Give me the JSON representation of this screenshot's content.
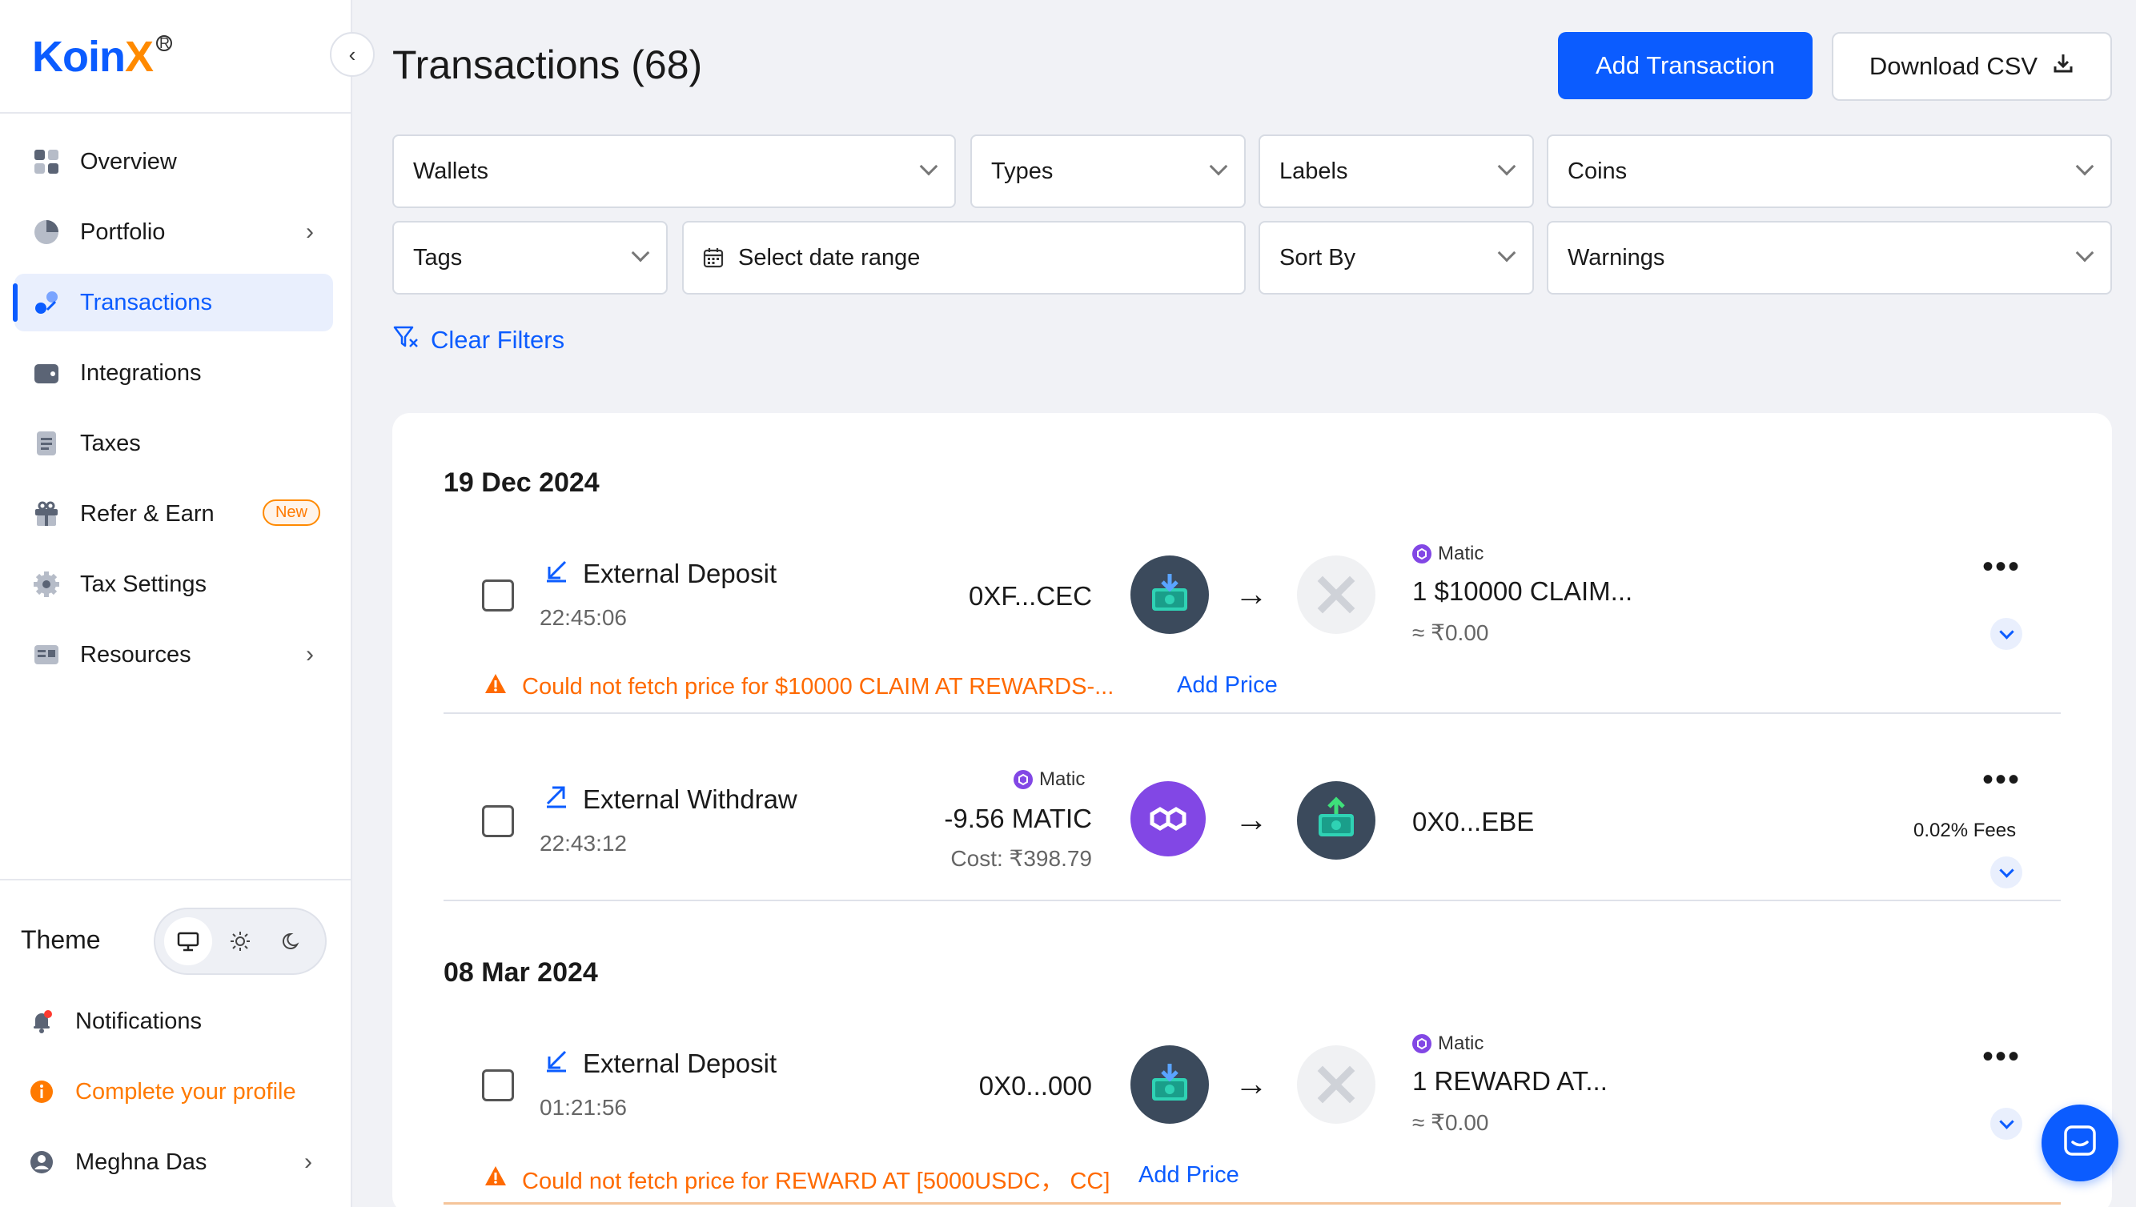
{
  "brand": {
    "name_main": "Koin",
    "name_accent": "X",
    "registered": "R"
  },
  "sidebar": {
    "items": [
      {
        "label": "Overview",
        "icon": "grid-icon"
      },
      {
        "label": "Portfolio",
        "icon": "pie-chart-icon"
      },
      {
        "label": "Transactions",
        "icon": "transfer-icon"
      },
      {
        "label": "Integrations",
        "icon": "wallet-icon"
      },
      {
        "label": "Taxes",
        "icon": "document-icon"
      },
      {
        "label": "Refer & Earn",
        "icon": "gift-icon",
        "badge": "New"
      },
      {
        "label": "Tax Settings",
        "icon": "gear-icon"
      },
      {
        "label": "Resources",
        "icon": "book-icon"
      }
    ],
    "theme_label": "Theme",
    "notifications": "Notifications",
    "complete_profile": "Complete your profile",
    "user_name": "Meghna Das"
  },
  "header": {
    "title": "Transactions (68)",
    "add_transaction": "Add Transaction",
    "download_csv": "Download CSV"
  },
  "filters": {
    "wallets": "Wallets",
    "types": "Types",
    "labels": "Labels",
    "coins": "Coins",
    "tags": "Tags",
    "date_range": "Select date range",
    "sort_by": "Sort By",
    "warnings": "Warnings",
    "clear": "Clear Filters"
  },
  "groups": [
    {
      "date": "19 Dec 2024",
      "transactions": [
        {
          "type": "External Deposit",
          "time": "22:45:06",
          "from_address": "0XF...CEC",
          "to_chain": "Matic",
          "to_amount": "1 $10000 CLAIM...",
          "to_value": "≈ ₹0.00",
          "warning": "Could not fetch price for $10000 CLAIM AT REWARDS-...",
          "add_price": "Add Price"
        },
        {
          "type": "External Withdraw",
          "time": "22:43:12",
          "from_chain": "Matic",
          "from_amount": "-9.56 MATIC",
          "cost": "Cost: ₹398.79",
          "to_address": "0X0...EBE",
          "fees": "0.02% Fees"
        }
      ]
    },
    {
      "date": "08 Mar 2024",
      "transactions": [
        {
          "type": "External Deposit",
          "time": "01:21:56",
          "from_address": "0X0...000",
          "to_chain": "Matic",
          "to_amount": "1 REWARD AT...",
          "to_value": "≈ ₹0.00",
          "warning": "Could not fetch price for REWARD AT [5000USDC， CC]",
          "add_price": "Add Price"
        }
      ]
    }
  ],
  "colors": {
    "accent": "#0b5cff",
    "warning": "#ff6a00",
    "matic": "#8247e5"
  }
}
